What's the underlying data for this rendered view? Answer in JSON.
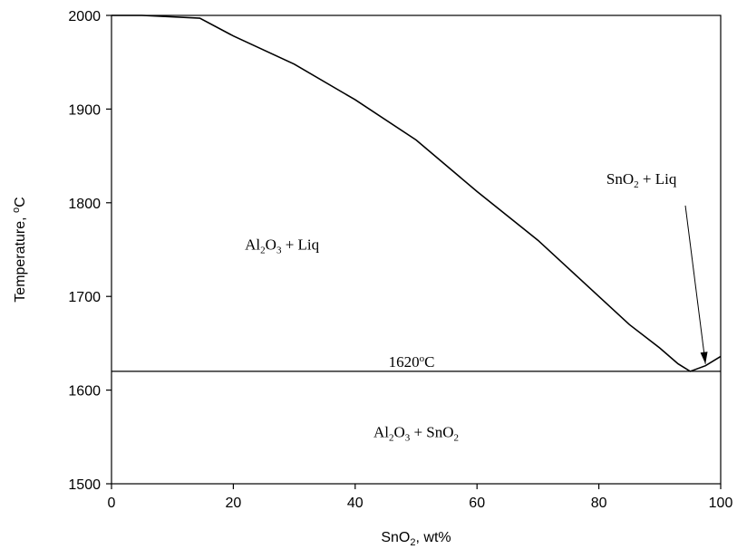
{
  "chart_data": {
    "type": "line",
    "xlabel": {
      "base": "SnO",
      "sub": "2",
      "rest": ", wt%"
    },
    "ylabel": {
      "base": "Temperature, ",
      "sup": "o",
      "rest": "C"
    },
    "xlim": [
      0,
      100
    ],
    "ylim": [
      1500,
      2000
    ],
    "x_ticks": [
      "0",
      "20",
      "40",
      "60",
      "80",
      "100"
    ],
    "y_ticks": [
      "1500",
      "1600",
      "1700",
      "1800",
      "1900",
      "2000"
    ],
    "grid": false,
    "series": [
      {
        "points": [
          [
            0,
            2000
          ],
          [
            5,
            2000
          ],
          [
            14.5,
            1997
          ],
          [
            20,
            1978
          ],
          [
            30,
            1948
          ],
          [
            40,
            1910
          ],
          [
            50,
            1867
          ],
          [
            60,
            1812
          ],
          [
            70,
            1760
          ],
          [
            75,
            1730
          ],
          [
            80,
            1700
          ],
          [
            85,
            1670
          ],
          [
            90,
            1645
          ],
          [
            93,
            1628
          ],
          [
            95,
            1620
          ],
          [
            97.5,
            1626
          ],
          [
            100,
            1636
          ]
        ]
      },
      {
        "points": [
          [
            0,
            1620
          ],
          [
            100,
            1620
          ]
        ]
      }
    ],
    "annotations": {
      "eutectic_label": {
        "x": 50,
        "y": 1620,
        "text_num": "1620",
        "text_sup": "o",
        "text_rest": "C"
      },
      "region_al2o3_liq": {
        "x": 28,
        "y": 1750,
        "parts": [
          "Al",
          "2",
          "O",
          "3",
          " + Liq"
        ]
      },
      "region_al2o3_sno2": {
        "x": 50,
        "y": 1550,
        "parts": [
          "Al",
          "2",
          "O",
          "3",
          " + SnO",
          "2"
        ]
      },
      "region_sno2_liq": {
        "x": 87,
        "y": 1820,
        "parts": [
          "SnO",
          "2",
          " + Liq"
        ]
      },
      "arrow": {
        "from": [
          94.2,
          1797
        ],
        "to": [
          97.5,
          1628
        ]
      }
    }
  }
}
